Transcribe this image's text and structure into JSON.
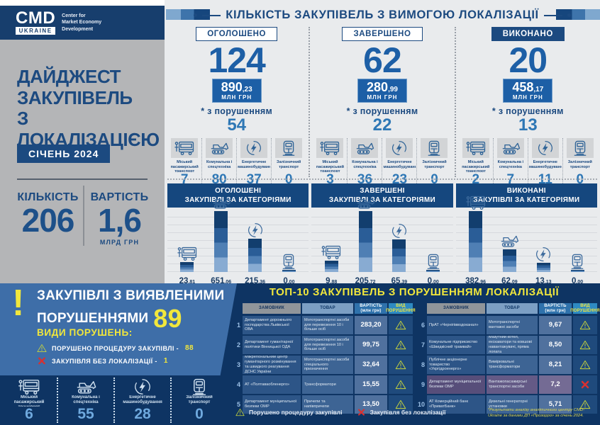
{
  "brand": {
    "logo_main": "CMD",
    "logo_sub": "UKRAINE",
    "caption_lines": [
      "Center for",
      "Market Economy",
      "Development"
    ]
  },
  "sidebar": {
    "title_lines": [
      "ДАЙДЖЕСТ",
      "ЗАКУПІВЕЛЬ",
      "З ЛОКАЛІЗАЦІЄЮ"
    ],
    "period": "СІЧЕНЬ 2024",
    "stat1_label": "КІЛЬКІСТЬ",
    "stat1_value": "206",
    "stat2_label": "ВАРТІСТЬ",
    "stat2_value": "1,6",
    "stat2_unit": "МЛРД ГРН"
  },
  "header": {
    "title": "КІЛЬКІСТЬ ЗАКУПІВЕЛЬ З ВИМОГОЮ ЛОКАЛІЗАЦІЇ"
  },
  "categories": [
    "Міський пасажирський транспорт",
    "Комунальна і спецтехніка",
    "Енергетичне машинобудування",
    "Залізничний транспорт"
  ],
  "columns": [
    {
      "status": "ОГОЛОШЕНО",
      "total": "124",
      "amount_main": "890",
      "amount_frac": ",23",
      "amount_unit": "МЛН ГРН",
      "note": "* з порушенням",
      "violations": "54",
      "by_category": [
        "7",
        "80",
        "37",
        "0"
      ]
    },
    {
      "status": "ЗАВЕРШЕНО",
      "total": "62",
      "amount_main": "280",
      "amount_frac": ",99",
      "amount_unit": "МЛН ГРН",
      "note": "* з порушенням",
      "violations": "22",
      "by_category": [
        "3",
        "36",
        "23",
        "0"
      ]
    },
    {
      "status": "ВИКОНАНО",
      "total": "20",
      "amount_main": "458",
      "amount_frac": ",17",
      "amount_unit": "МЛН ГРН",
      "note": "* з порушенням",
      "violations": "13",
      "by_category": [
        "2",
        "7",
        "11",
        "0"
      ]
    }
  ],
  "chart_data": [
    {
      "type": "bar",
      "title": "ОГОЛОШЕНІ ЗАКУПІВЛІ ЗА КАТЕГОРІЯМИ",
      "title_lines": [
        "ОГОЛОШЕНІ",
        "ЗАКУПІВЛІ ЗА КАТЕГОРІЯМИ"
      ],
      "categories": [
        "Міський пасажирський транспорт",
        "Комунальна і спецтехніка",
        "Енергетичне машинобудування",
        "Залізничний транспорт"
      ],
      "values": [
        23.81,
        651.06,
        215.36,
        0.0
      ],
      "unit": "МЛН ГРН"
    },
    {
      "type": "bar",
      "title": "ЗАВЕРШЕНІ ЗАКУПІВЛІ ЗА КАТЕГОРІЯМИ",
      "title_lines": [
        "ЗАВЕРШЕНІ",
        "ЗАКУПІВЛІ ЗА КАТЕГОРІЯМИ"
      ],
      "categories": [
        "Міський пасажирський транспорт",
        "Комунальна і спецтехніка",
        "Енергетичне машинобудування",
        "Залізничний транспорт"
      ],
      "values": [
        9.88,
        205.72,
        65.39,
        0.0
      ],
      "unit": "МЛН ГРН"
    },
    {
      "type": "bar",
      "title": "ВИКОНАНІ ЗАКУПІВЛІ ЗА КАТЕГОРІЯМИ",
      "title_lines": [
        "ВИКОНАНІ",
        "ЗАКУПІВЛІ ЗА КАТЕГОРІЯМИ"
      ],
      "categories": [
        "Міський пасажирський транспорт",
        "Комунальна і спецтехніка",
        "Енергетичне машинобудування",
        "Залізничний транспорт"
      ],
      "values": [
        382.96,
        62.09,
        13.13,
        0.0
      ],
      "unit": "МЛН ГРН"
    }
  ],
  "violations_panel": {
    "exclamation": "!",
    "title_line1": "ЗАКУПІВЛІ З ВИЯВЛЕНИМИ",
    "title_line2": "ПОРУШЕННЯМИ",
    "count": "89",
    "kinds_label": "ВИДИ ПОРУШЕНЬ:",
    "items": [
      {
        "icon": "warning",
        "label": "ПОРУШЕНО ПРОЦЕДУРУ ЗАКУПІВЛІ -",
        "value": "88"
      },
      {
        "icon": "cross",
        "label": "ЗАКУПІВЛЯ БЕЗ ЛОКАЛІЗАЦІЇ -",
        "value": "1"
      }
    ],
    "by_category": [
      "6",
      "55",
      "28",
      "0"
    ]
  },
  "table": {
    "title": "ТОП-10 ЗАКУПІВЕЛЬ З ПОРУШЕННЯМ ЛОКАЛІЗАЦІЇ",
    "headers": [
      [
        "ЗАМОВНИК"
      ],
      [
        "ТОВАР"
      ],
      [
        "ВАРТІСТЬ",
        "(млн грн)"
      ],
      [
        "ВИД",
        "ПОРУШЕННЯ"
      ]
    ],
    "rows": [
      {
        "num": "1",
        "customer": "Департамент дорожнього господарства Львівської ОВА",
        "product": "Мототранспортні засоби для перевезення 10 і більше осіб",
        "value": "283,20",
        "violation": "warning"
      },
      {
        "num": "2",
        "customer": "Департамент гуманітарної політики Вінницької ОДА",
        "product": "Мототранспортні засоби для перевезення 10 і більше осіб",
        "value": "99,75",
        "violation": "warning"
      },
      {
        "num": "3",
        "customer": "Міжрегіональний центр гуманітарного розмінування та швидкого реагування ДСНС України",
        "product": "Мототранспортні засоби спеціального призначення",
        "value": "32,64",
        "violation": "warning"
      },
      {
        "num": "4",
        "customer": "АТ «Полтаваобленерго»",
        "product": "Трансформатори",
        "value": "15,55",
        "violation": "warning"
      },
      {
        "num": "5",
        "customer": "Департамент муніципальної безпеки ОМР",
        "product": "Причепи та напівпричепи",
        "value": "13,50",
        "violation": "warning"
      },
      {
        "num": "6",
        "customer": "ПрАТ «Чернігівводоканал»",
        "product": "Мототранспортні вантажні засоби",
        "value": "9,67",
        "violation": "warning"
      },
      {
        "num": "7",
        "customer": "Комунальне підприємство «Швидкісний трамвай»",
        "product": "Мазутний котел, екскаватори та ковшові навантажувачі, пряма лопата",
        "value": "8,50",
        "violation": "warning"
      },
      {
        "num": "8",
        "customer": "Публічне акціонерне товариство «Укргідроенерго»",
        "product": "Вимірювальні трансформатори",
        "value": "8,21",
        "violation": "warning"
      },
      {
        "num": "9",
        "customer": "Департамент муніципальної безпеки ОМР",
        "product": "Вантажопасажирські транспортні засоби",
        "value": "7,2",
        "violation": "cross"
      },
      {
        "num": "10",
        "customer": "АТ Комерційний банк «ПриватБанк»",
        "product": "Дизельні генераторні установки",
        "value": "5,71",
        "violation": "warning"
      }
    ],
    "legend": [
      {
        "icon": "warning",
        "label": "Порушено процедуру закупівлі"
      },
      {
        "icon": "cross",
        "label": "Закупівля без локалізації"
      }
    ],
    "footnote": "*Результати аналізу аналітичного центру CMD-Ukraine за даними ДП «Прозорро» за січень 2024."
  },
  "colors": {
    "navy": "#1c4a80",
    "accent_blue": "#2e77b5",
    "yellow": "#f1e73c",
    "red": "#d93030",
    "panel_blue": "#3e6ea8",
    "band_bg": "#0e3463"
  }
}
